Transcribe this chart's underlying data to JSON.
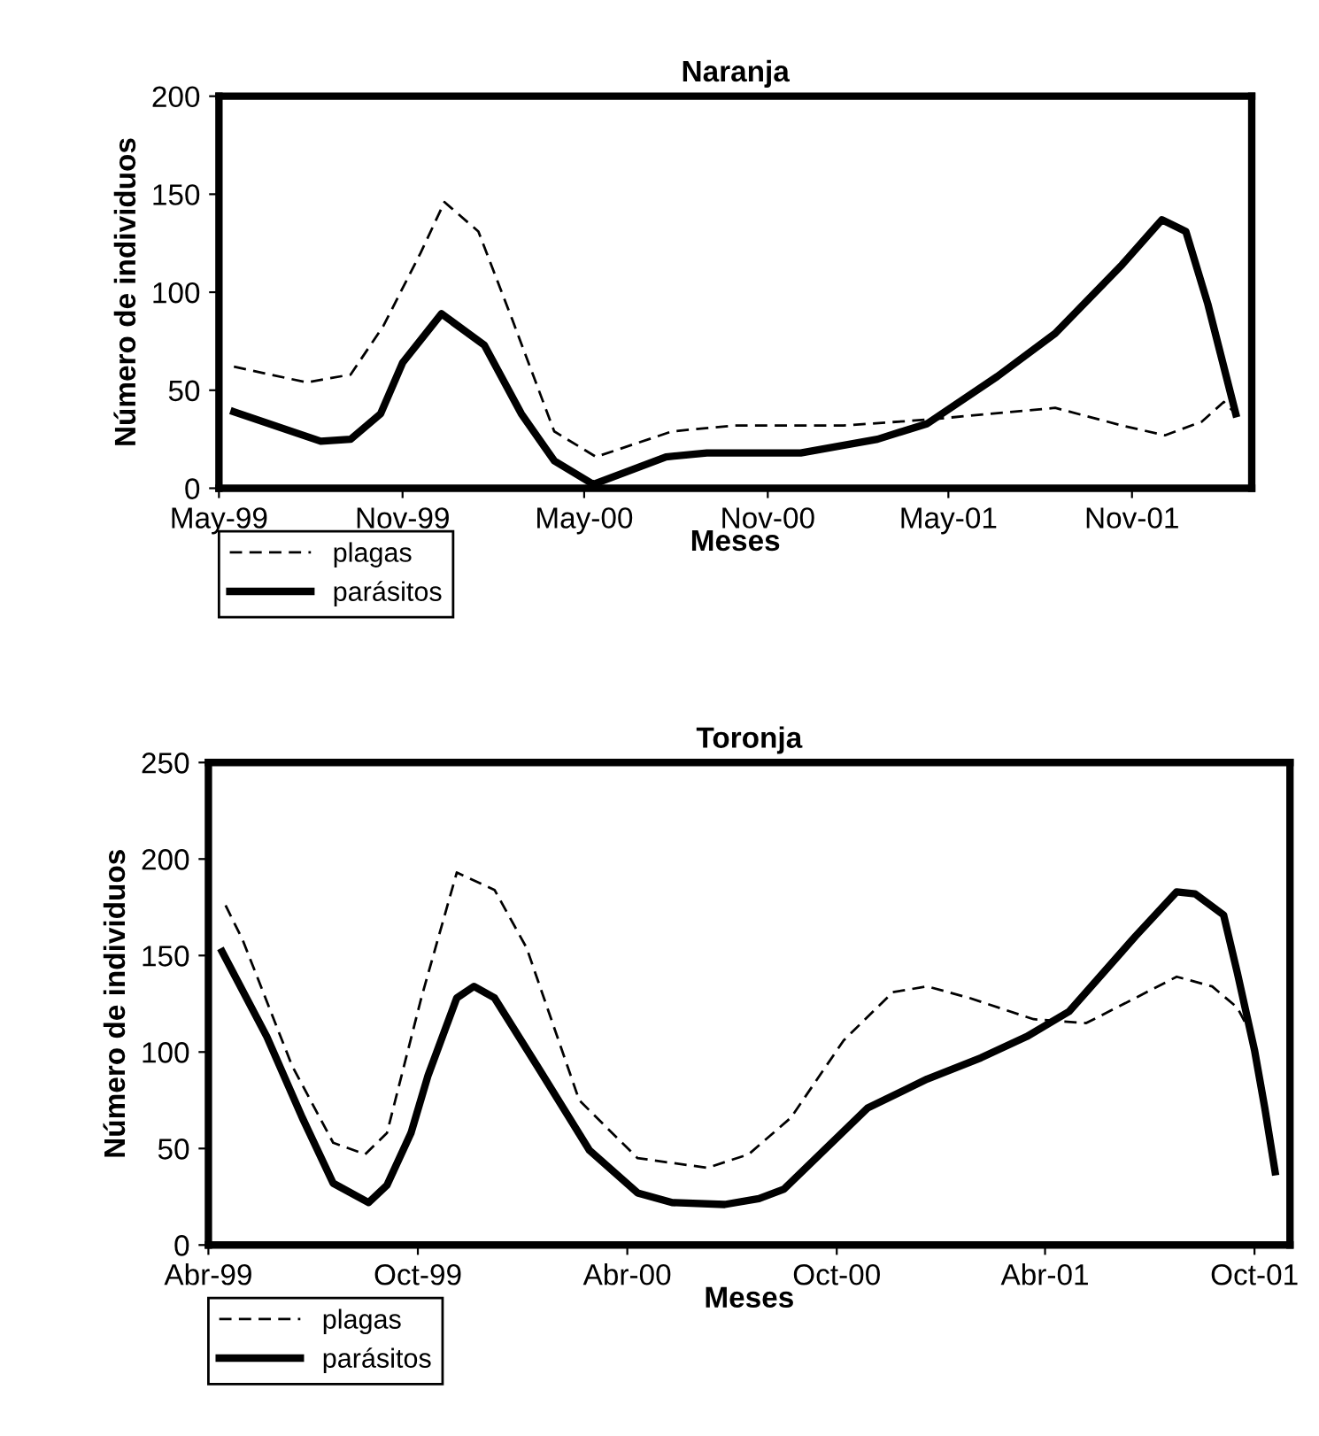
{
  "chart_data": [
    {
      "type": "line",
      "title": "Naranja",
      "xlabel": "Meses",
      "ylabel": "Número de individuos",
      "xlim": [
        "1999-05",
        "2002-03"
      ],
      "xticks": [
        {
          "value": "1999-05",
          "label": "May-99"
        },
        {
          "value": "1999-11",
          "label": "Nov-99"
        },
        {
          "value": "2000-05",
          "label": "May-00"
        },
        {
          "value": "2000-11",
          "label": "Nov-00"
        },
        {
          "value": "2001-05",
          "label": "May-01"
        },
        {
          "value": "2001-11",
          "label": "Nov-01"
        }
      ],
      "ylim": [
        0,
        200
      ],
      "yticks": [
        0,
        50,
        100,
        150,
        200
      ],
      "grid": false,
      "legend": "bottom left",
      "marker": "none",
      "series": [
        {
          "name": "plagas",
          "color": "#000000",
          "line_style": "dashed",
          "x": [
            "1999-05-16",
            "1999-07-28",
            "1999-09-10",
            "1999-10-13",
            "1999-11-19",
            "1999-12-13",
            "2000-01-16",
            "2000-02-19",
            "2000-04-01",
            "2000-05-13",
            "2000-07-28",
            "2000-09-28",
            "2001-01-16",
            "2001-04-10",
            "2001-08-16",
            "2001-10-22",
            "2001-12-04",
            "2002-01-10",
            "2002-02-01",
            "2002-02-13"
          ],
          "values": [
            62,
            54,
            58,
            83,
            120,
            146,
            131,
            86,
            29,
            16,
            29,
            32,
            32,
            35,
            41,
            32,
            27,
            34,
            44,
            38
          ]
        },
        {
          "name": "parásitos",
          "color": "#000000",
          "line_style": "solid",
          "x": [
            "1999-05-16",
            "1999-08-11",
            "1999-09-10",
            "1999-10-10",
            "1999-11-01",
            "1999-12-10",
            "2000-01-22",
            "2000-02-28",
            "2000-04-01",
            "2000-05-10",
            "2000-07-22",
            "2000-09-01",
            "2000-12-04",
            "2001-02-19",
            "2001-04-10",
            "2001-06-19",
            "2001-08-16",
            "2001-10-22",
            "2001-12-01",
            "2001-12-25",
            "2002-01-16",
            "2002-02-13"
          ],
          "values": [
            39,
            24,
            25,
            38,
            64,
            89,
            73,
            38,
            14,
            2,
            16,
            18,
            18,
            25,
            33,
            57,
            79,
            114,
            137,
            131,
            94,
            38
          ]
        }
      ]
    },
    {
      "type": "line",
      "title": "Toronja",
      "xlabel": "Meses",
      "ylabel": "Número de individuos",
      "xlim": [
        "1999-04",
        "2001-11"
      ],
      "xticks": [
        {
          "value": "1999-04",
          "label": "Abr-99"
        },
        {
          "value": "1999-10",
          "label": "Oct-99"
        },
        {
          "value": "2000-04",
          "label": "Abr-00"
        },
        {
          "value": "2000-10",
          "label": "Oct-00"
        },
        {
          "value": "2001-04",
          "label": "Abr-01"
        },
        {
          "value": "2001-10",
          "label": "Oct-01"
        }
      ],
      "ylim": [
        0,
        250
      ],
      "yticks": [
        0,
        50,
        100,
        150,
        200,
        250
      ],
      "grid": false,
      "legend": "bottom left",
      "marker": "none",
      "series": [
        {
          "name": "plagas",
          "color": "#000000",
          "line_style": "dashed",
          "x": [
            "1999-04-16",
            "1999-05-01",
            "1999-06-13",
            "1999-07-19",
            "1999-08-16",
            "1999-09-04",
            "1999-10-04",
            "1999-11-04",
            "1999-12-07",
            "2000-01-04",
            "2000-02-19",
            "2000-04-10",
            "2000-06-10",
            "2000-07-16",
            "2000-08-22",
            "2000-10-07",
            "2000-11-19",
            "2000-12-19",
            "2001-01-25",
            "2001-03-22",
            "2001-05-07",
            "2001-06-19",
            "2001-07-25",
            "2001-08-25",
            "2001-09-16",
            "2001-10-01",
            "2001-10-10",
            "2001-10-19"
          ],
          "values": [
            176,
            158,
            93,
            53,
            47,
            58,
            128,
            193,
            184,
            154,
            75,
            45,
            40,
            47,
            66,
            106,
            131,
            134,
            128,
            117,
            115,
            128,
            139,
            134,
            123,
            106,
            71,
            38
          ]
        },
        {
          "name": "parásitos",
          "color": "#000000",
          "line_style": "solid",
          "x": [
            "1999-04-13",
            "1999-05-22",
            "1999-06-22",
            "1999-07-19",
            "1999-08-19",
            "1999-09-04",
            "1999-09-25",
            "1999-10-10",
            "1999-11-04",
            "1999-11-19",
            "1999-12-07",
            "2000-01-13",
            "2000-02-28",
            "2000-04-10",
            "2000-05-10",
            "2000-06-25",
            "2000-07-25",
            "2000-08-16",
            "2000-10-28",
            "2000-12-19",
            "2001-02-04",
            "2001-03-16",
            "2001-04-22",
            "2001-06-19",
            "2001-07-25",
            "2001-08-10",
            "2001-09-04",
            "2001-09-16",
            "2001-10-01",
            "2001-10-10",
            "2001-10-19"
          ],
          "values": [
            152,
            108,
            66,
            32,
            22,
            31,
            58,
            88,
            128,
            134,
            128,
            93,
            49,
            27,
            22,
            21,
            24,
            29,
            71,
            86,
            97,
            108,
            121,
            160,
            183,
            182,
            171,
            141,
            101,
            71,
            38
          ]
        }
      ]
    }
  ]
}
